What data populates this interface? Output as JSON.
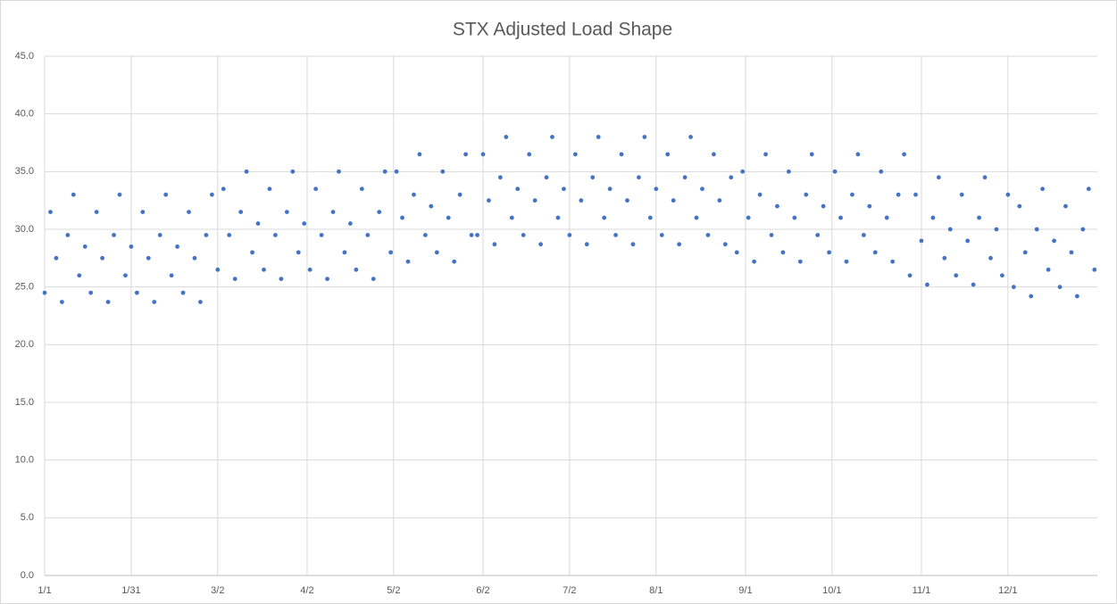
{
  "chart_data": {
    "type": "scatter",
    "title": "STX Adjusted Load Shape",
    "color": "#4472c4",
    "grid": true,
    "xlim": [
      1,
      366
    ],
    "xticks": [
      {
        "value": 1,
        "label": "1/1"
      },
      {
        "value": 31,
        "label": "1/31"
      },
      {
        "value": 61,
        "label": "3/2"
      },
      {
        "value": 92,
        "label": "4/2"
      },
      {
        "value": 122,
        "label": "5/2"
      },
      {
        "value": 153,
        "label": "6/2"
      },
      {
        "value": 183,
        "label": "7/2"
      },
      {
        "value": 213,
        "label": "8/1"
      },
      {
        "value": 244,
        "label": "9/1"
      },
      {
        "value": 274,
        "label": "10/1"
      },
      {
        "value": 305,
        "label": "11/1"
      },
      {
        "value": 335,
        "label": "12/1"
      }
    ],
    "ylim": [
      0,
      45
    ],
    "yticks": [
      {
        "value": 0,
        "label": "0.0"
      },
      {
        "value": 5,
        "label": "5.0"
      },
      {
        "value": 10,
        "label": "10.0"
      },
      {
        "value": 15,
        "label": "15.0"
      },
      {
        "value": 20,
        "label": "20.0"
      },
      {
        "value": 25,
        "label": "25.0"
      },
      {
        "value": 30,
        "label": "30.0"
      },
      {
        "value": 35,
        "label": "35.0"
      },
      {
        "value": 40,
        "label": "40.0"
      },
      {
        "value": 45,
        "label": "45.0"
      }
    ],
    "x": [
      1,
      3,
      5,
      7,
      9,
      11,
      13,
      15,
      17,
      19,
      21,
      23,
      25,
      27,
      29,
      31,
      33,
      35,
      37,
      39,
      41,
      43,
      45,
      47,
      49,
      51,
      53,
      55,
      57,
      59,
      61,
      63,
      65,
      67,
      69,
      71,
      73,
      75,
      77,
      79,
      81,
      83,
      85,
      87,
      89,
      91,
      93,
      95,
      97,
      99,
      101,
      103,
      105,
      107,
      109,
      111,
      113,
      115,
      117,
      119,
      121,
      123,
      125,
      127,
      129,
      131,
      133,
      135,
      137,
      139,
      141,
      143,
      145,
      147,
      149,
      151,
      153,
      155,
      157,
      159,
      161,
      163,
      165,
      167,
      169,
      171,
      173,
      175,
      177,
      179,
      181,
      183,
      185,
      187,
      189,
      191,
      193,
      195,
      197,
      199,
      201,
      203,
      205,
      207,
      209,
      211,
      213,
      215,
      217,
      219,
      221,
      223,
      225,
      227,
      229,
      231,
      233,
      235,
      237,
      239,
      241,
      243,
      245,
      247,
      249,
      251,
      253,
      255,
      257,
      259,
      261,
      263,
      265,
      267,
      269,
      271,
      273,
      275,
      277,
      279,
      281,
      283,
      285,
      287,
      289,
      291,
      293,
      295,
      297,
      299,
      301,
      303,
      305,
      307,
      309,
      311,
      313,
      315,
      317,
      319,
      321,
      323,
      325,
      327,
      329,
      331,
      333,
      335,
      337,
      339,
      341,
      343,
      345,
      347,
      349,
      351,
      353,
      355,
      357,
      359,
      361,
      363,
      365
    ],
    "values": [
      24.5,
      31.5,
      27.5,
      23.7,
      29.5,
      33,
      26,
      28.5,
      24.5,
      31.5,
      27.5,
      23.7,
      29.5,
      33,
      26,
      28.5,
      24.5,
      31.5,
      27.5,
      23.7,
      29.5,
      33,
      26,
      28.5,
      24.5,
      31.5,
      27.5,
      23.7,
      29.5,
      33,
      26.5,
      33.5,
      29.5,
      25.7,
      31.5,
      35,
      28,
      30.5,
      26.5,
      33.5,
      29.5,
      25.7,
      31.5,
      35,
      28,
      30.5,
      26.5,
      33.5,
      29.5,
      25.7,
      31.5,
      35,
      28,
      30.5,
      26.5,
      33.5,
      29.5,
      25.7,
      31.5,
      35,
      28,
      35,
      31,
      27.2,
      33,
      36.5,
      29.5,
      32,
      28,
      35,
      31,
      27.2,
      33,
      36.5,
      29.5,
      29.5,
      36.5,
      32.5,
      28.7,
      34.5,
      38,
      31,
      33.5,
      29.5,
      36.5,
      32.5,
      28.7,
      34.5,
      38,
      31,
      33.5,
      29.5,
      36.5,
      32.5,
      28.7,
      34.5,
      38,
      31,
      33.5,
      29.5,
      36.5,
      32.5,
      28.7,
      34.5,
      38,
      31,
      33.5,
      29.5,
      36.5,
      32.5,
      28.7,
      34.5,
      38,
      31,
      33.5,
      29.5,
      36.5,
      32.5,
      28.7,
      34.5,
      28,
      35,
      31,
      27.2,
      33,
      36.5,
      29.5,
      32,
      28,
      35,
      31,
      27.2,
      33,
      36.5,
      29.5,
      32,
      28,
      35,
      31,
      27.2,
      33,
      36.5,
      29.5,
      32,
      28,
      35,
      31,
      27.2,
      33,
      36.5,
      26,
      33,
      29,
      25.2,
      31,
      34.5,
      27.5,
      30,
      26,
      33,
      29,
      25.2,
      31,
      34.5,
      27.5,
      30,
      26,
      33,
      25,
      32,
      28,
      24.2,
      30,
      33.5,
      26.5,
      29,
      25,
      32,
      28,
      24.2,
      30,
      33.5,
      26.5
    ]
  }
}
